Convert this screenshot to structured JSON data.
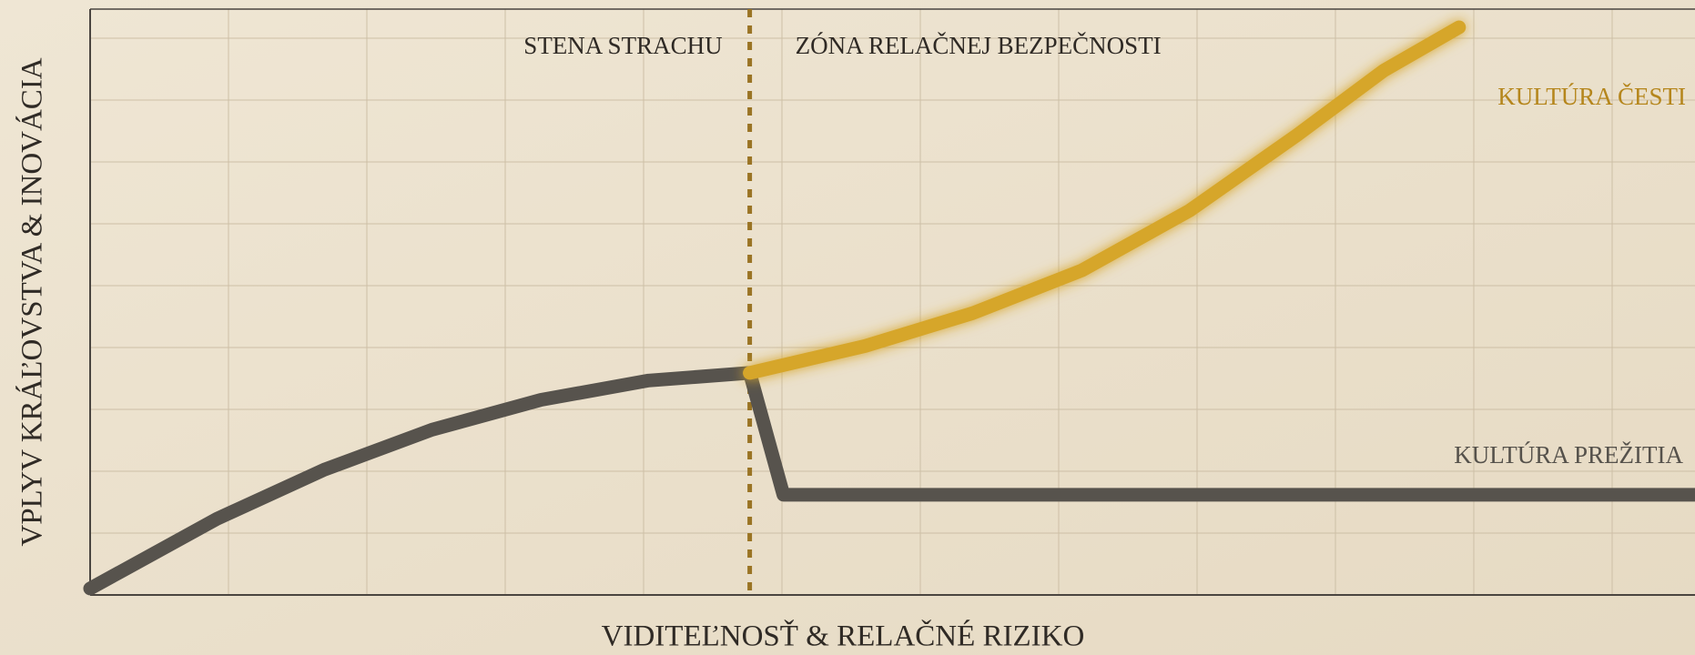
{
  "chart_data": {
    "type": "line",
    "x_label": "VIDITEĽNOSŤ & RELAČNÉ RIZIKO",
    "y_label": "VPLYV KRÁĽOVSTVA & INOVÁCIA",
    "xlim": [
      0,
      100
    ],
    "ylim": [
      0,
      100
    ],
    "divider": {
      "x": 41.1,
      "left_label": "STENA STRACHU",
      "right_label": "ZÓNA RELAČNEJ BEZPEČNOSTI"
    },
    "series": [
      {
        "name": "KULTÚRA PREŽITIA",
        "color": "#57534d",
        "x": [
          0,
          7.9,
          14.6,
          21.3,
          28.1,
          34.8,
          41.1,
          43.2,
          100
        ],
        "values": [
          1.1,
          13,
          21.4,
          28.2,
          33.3,
          36.6,
          37.9,
          17.1,
          17.1
        ]
      },
      {
        "name": "KULTÚRA ČESTI",
        "color": "#d6a62a",
        "x": [
          41.1,
          48.3,
          55,
          61.8,
          68.5,
          75.2,
          80.6,
          85.3
        ],
        "values": [
          37.9,
          42.5,
          48.1,
          55.4,
          65.6,
          78.5,
          89.5,
          96.9
        ]
      }
    ]
  }
}
